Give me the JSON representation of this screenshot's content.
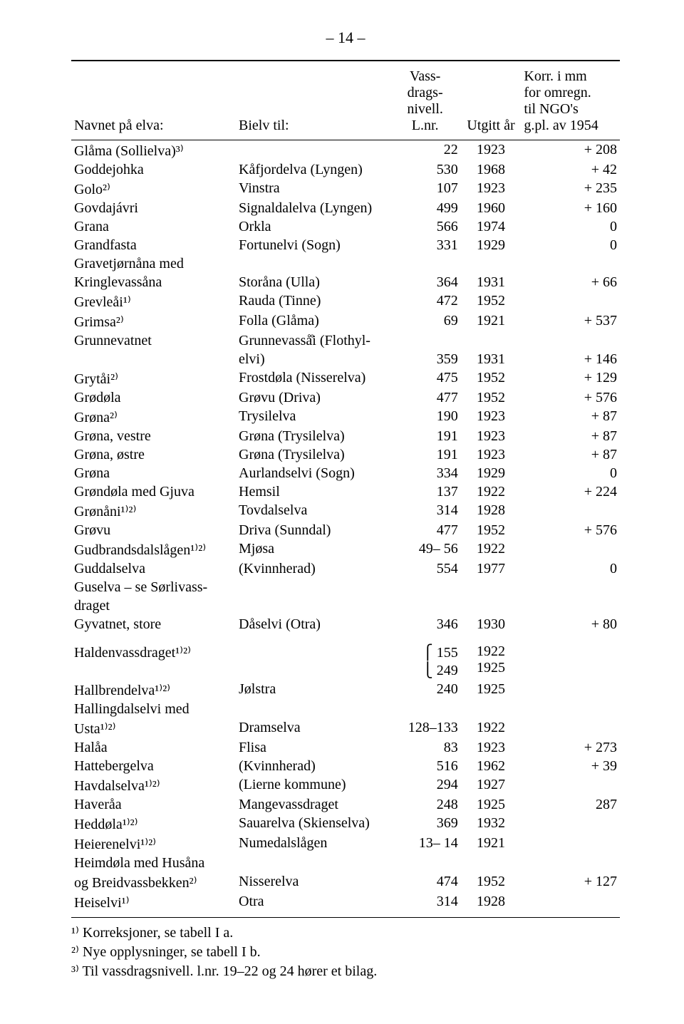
{
  "page_number": "– 14 –",
  "headers": {
    "col1": "Navnet på elva:",
    "col2": "Bielv til:",
    "col3": "Vass-\ndrags-\nnivell.\nL.nr.",
    "col4": "Utgitt år",
    "col5": "Korr. i mm\nfor omregn.\ntil NGO's\ng.pl. av 1954"
  },
  "rows": [
    {
      "a": "Glåma (Sollielva)³⁾",
      "b": "",
      "c": "22",
      "d": "1923",
      "e": "+ 208"
    },
    {
      "a": "Goddejohka",
      "b": "Kåfjordelva (Lyngen)",
      "c": "530",
      "d": "1968",
      "e": "+  42"
    },
    {
      "a": "Golo²⁾",
      "b": "Vinstra",
      "c": "107",
      "d": "1923",
      "e": "+ 235"
    },
    {
      "a": "Govdajávri",
      "b": "Signaldalelva (Lyngen)",
      "c": "499",
      "d": "1960",
      "e": "+ 160"
    },
    {
      "a": "Grana",
      "b": "Orkla",
      "c": "566",
      "d": "1974",
      "e": "0"
    },
    {
      "a": "Grandfasta",
      "b": "Fortunelvi (Sogn)",
      "c": "331",
      "d": "1929",
      "e": "0"
    },
    {
      "a": "Gravetjørnåna med",
      "b": "",
      "c": "",
      "d": "",
      "e": ""
    },
    {
      "a": "Kringlevassåna",
      "b": "Storåna (Ulla)",
      "c": "364",
      "d": "1931",
      "e": "+  66"
    },
    {
      "a": "Grevleåi¹⁾",
      "b": "Rauda (Tinne)",
      "c": "472",
      "d": "1952",
      "e": ""
    },
    {
      "a": "Grimsa²⁾",
      "b": "Folla (Glåma)",
      "c": "69",
      "d": "1921",
      "e": "+ 537"
    },
    {
      "a": "Grunnevatnet",
      "b": "Grunnevasså̊i (Flothyl-",
      "c": "",
      "d": "",
      "e": ""
    },
    {
      "a": "",
      "b": "elvi)",
      "c": "359",
      "d": "1931",
      "e": "+ 146"
    },
    {
      "a": "Grytåi²⁾",
      "b": "Frostdøla (Nisserelva)",
      "c": "475",
      "d": "1952",
      "e": "+ 129"
    },
    {
      "a": "Grødøla",
      "b": "Grøvu (Driva)",
      "c": "477",
      "d": "1952",
      "e": "+ 576"
    },
    {
      "a": "Grøna²⁾",
      "b": "Trysilelva",
      "c": "190",
      "d": "1923",
      "e": "+  87"
    },
    {
      "a": "Grøna, vestre",
      "b": "Grøna (Trysilelva)",
      "c": "191",
      "d": "1923",
      "e": "+  87"
    },
    {
      "a": "Grøna, østre",
      "b": "Grøna (Trysilelva)",
      "c": "191",
      "d": "1923",
      "e": "+  87"
    },
    {
      "a": "Grøna",
      "b": "Aurlandselvi (Sogn)",
      "c": "334",
      "d": "1929",
      "e": "0"
    },
    {
      "a": "Grøndøla med Gjuva",
      "b": "Hemsil",
      "c": "137",
      "d": "1922",
      "e": "+ 224"
    },
    {
      "a": "Grønåni¹⁾²⁾",
      "b": "Tovdalselva",
      "c": "314",
      "d": "1928",
      "e": ""
    },
    {
      "a": "Grøvu",
      "b": "Driva (Sunndal)",
      "c": "477",
      "d": "1952",
      "e": "+ 576"
    },
    {
      "a": "Gudbrandsdalslågen¹⁾²⁾",
      "b": "Mjøsa",
      "c": "49– 56",
      "d": "1922",
      "e": ""
    },
    {
      "a": "Guddalselva",
      "b": "(Kvinnherad)",
      "c": "554",
      "d": "1977",
      "e": "0"
    },
    {
      "a": "Guselva – se Sørlivass-",
      "b": "",
      "c": "",
      "d": "",
      "e": ""
    },
    {
      "a": "draget",
      "b": "",
      "c": "",
      "d": "",
      "e": ""
    },
    {
      "a": "Gyvatnet, store",
      "b": "Dåselvi (Otra)",
      "c": "346",
      "d": "1930",
      "e": "+  80"
    }
  ],
  "rows2": [
    {
      "a": "Haldenvassdraget¹⁾²⁾",
      "b": "",
      "c": "⎧ 155\n⎩ 249",
      "d": "1922\n1925",
      "e": ""
    },
    {
      "a": "Hallbrendelva¹⁾²⁾",
      "b": "Jølstra",
      "c": "240",
      "d": "1925",
      "e": ""
    },
    {
      "a": "Hallingdalselvi med",
      "b": "",
      "c": "",
      "d": "",
      "e": ""
    },
    {
      "a": "Usta¹⁾²⁾",
      "b": "Dramselva",
      "c": "128–133",
      "d": "1922",
      "e": ""
    },
    {
      "a": "Halåa",
      "b": "Flisa",
      "c": "83",
      "d": "1923",
      "e": "+ 273"
    },
    {
      "a": "Hattebergelva",
      "b": "(Kvinnherad)",
      "c": "516",
      "d": "1962",
      "e": "+  39"
    },
    {
      "a": "Havdalselva¹⁾²⁾",
      "b": "(Lierne kommune)",
      "c": "294",
      "d": "1927",
      "e": ""
    },
    {
      "a": "Haveråa",
      "b": "Mangevassdraget",
      "c": "248",
      "d": "1925",
      "e": "287"
    },
    {
      "a": "Heddøla¹⁾²⁾",
      "b": "Sauarelva (Skienselva)",
      "c": "369",
      "d": "1932",
      "e": ""
    },
    {
      "a": "Heierenelvi¹⁾²⁾",
      "b": "Numedalslågen",
      "c": "13– 14",
      "d": "1921",
      "e": ""
    },
    {
      "a": "Heimdøla med Husåna",
      "b": "",
      "c": "",
      "d": "",
      "e": ""
    },
    {
      "a": "og Breidvassbekken²⁾",
      "b": "Nisserelva",
      "c": "474",
      "d": "1952",
      "e": "+ 127"
    },
    {
      "a": "Heiselvi¹⁾",
      "b": "Otra",
      "c": "314",
      "d": "1928",
      "e": ""
    }
  ],
  "footnotes": [
    "¹⁾ Korreksjoner, se tabell I a.",
    "²⁾ Nye opplysninger, se tabell I b.",
    "³⁾ Til vassdragsnivell. l.nr. 19–22 og 24 hører et bilag."
  ]
}
